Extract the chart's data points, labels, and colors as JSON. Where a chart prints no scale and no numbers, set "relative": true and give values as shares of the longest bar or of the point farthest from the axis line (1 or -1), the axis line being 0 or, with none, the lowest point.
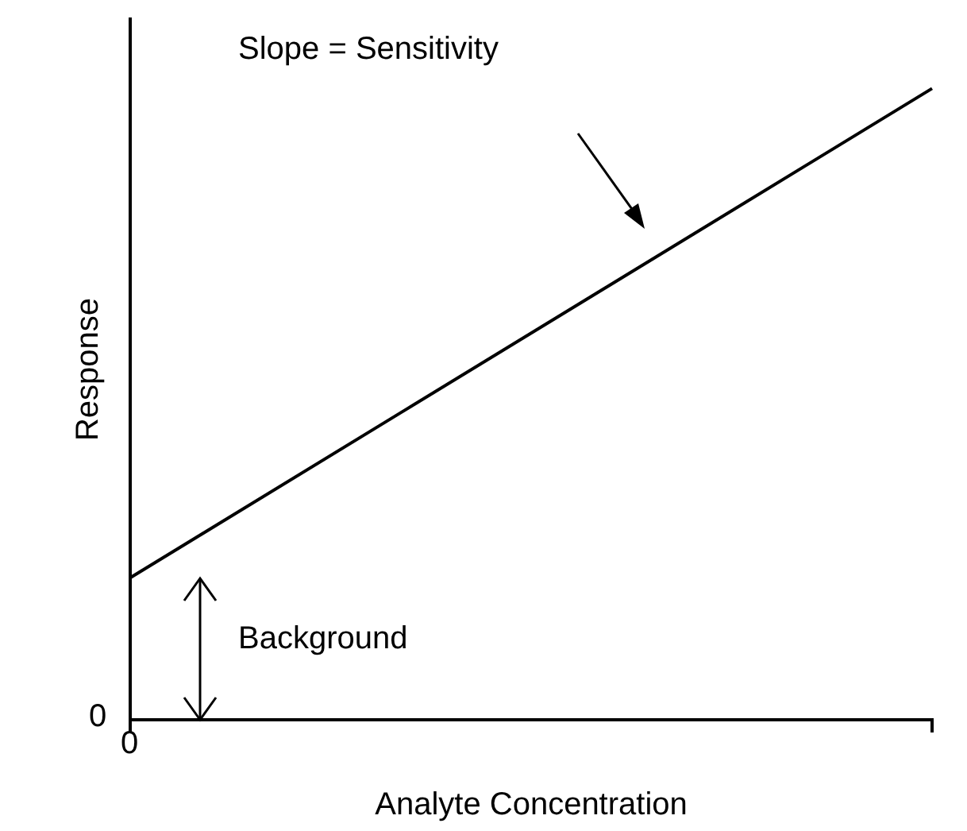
{
  "chart_data": {
    "type": "line",
    "relative": true,
    "xlabel": "Analyte Concentration",
    "ylabel": "Response",
    "categories": [
      null,
      null
    ],
    "series": [
      {
        "color": "#000000",
        "values": [
          0.225,
          1
        ]
      }
    ],
    "annotations": [
      "Slope = Sensitivity",
      "Background",
      "0",
      "0"
    ],
    "marker": "none",
    "line_style": "solid",
    "grid": false,
    "legend": false
  }
}
